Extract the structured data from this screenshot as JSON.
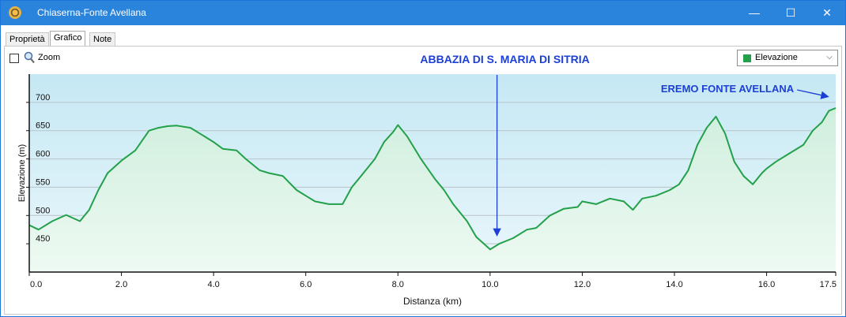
{
  "window": {
    "title": "Chiaserna-Fonte Avellana",
    "controls": {
      "minimize": "—",
      "maximize": "☐",
      "close": "✕"
    }
  },
  "tabs": [
    "Proprietà",
    "Grafico",
    "Note"
  ],
  "active_tab": "Grafico",
  "toolbar": {
    "zoom_label": "Zoom",
    "zoom_checked": false,
    "series_selected": "Elevazione"
  },
  "colors": {
    "titlebar": "#2b84dc",
    "series": "#23a04a",
    "annotation": "#1c3fd6"
  },
  "icons": [
    "app-icon",
    "magnifier-icon",
    "chevron-down-icon"
  ],
  "chart_data": {
    "type": "area",
    "xlabel": "Distanza  (km)",
    "ylabel": "Elevazione (m)",
    "xlim": [
      0,
      17.5
    ],
    "ylim": [
      400,
      750
    ],
    "xticks": [
      {
        "value": 0,
        "label": "0.0"
      },
      {
        "value": 2,
        "label": "2.0"
      },
      {
        "value": 4,
        "label": "4.0"
      },
      {
        "value": 6,
        "label": "6.0"
      },
      {
        "value": 8,
        "label": "8.0"
      },
      {
        "value": 10,
        "label": "10.0"
      },
      {
        "value": 12,
        "label": "12.0"
      },
      {
        "value": 14,
        "label": "14.0"
      },
      {
        "value": 16,
        "label": "16.0"
      },
      {
        "value": 17.5,
        "label": "17.5"
      }
    ],
    "yticks": [
      {
        "value": 450,
        "label": "450"
      },
      {
        "value": 500,
        "label": "500"
      },
      {
        "value": 550,
        "label": "550"
      },
      {
        "value": 600,
        "label": "600"
      },
      {
        "value": 650,
        "label": "650"
      },
      {
        "value": 700,
        "label": "700"
      }
    ],
    "grid": "horizontal",
    "series": [
      {
        "name": "Elevazione",
        "x": [
          0,
          0.2,
          0.5,
          0.8,
          1.1,
          1.3,
          1.5,
          1.7,
          2.0,
          2.3,
          2.6,
          2.8,
          3.0,
          3.2,
          3.5,
          3.8,
          4.0,
          4.2,
          4.5,
          4.7,
          5.0,
          5.2,
          5.5,
          5.8,
          6.0,
          6.2,
          6.5,
          6.8,
          7.0,
          7.2,
          7.5,
          7.7,
          7.9,
          8.0,
          8.2,
          8.5,
          8.8,
          9.0,
          9.2,
          9.5,
          9.7,
          10.0,
          10.2,
          10.5,
          10.8,
          11.0,
          11.3,
          11.6,
          11.9,
          12.0,
          12.3,
          12.6,
          12.9,
          13.1,
          13.3,
          13.6,
          13.9,
          14.1,
          14.3,
          14.5,
          14.7,
          14.9,
          15.1,
          15.3,
          15.5,
          15.7,
          15.9,
          16.0,
          16.2,
          16.5,
          16.8,
          17.0,
          17.2,
          17.35,
          17.5
        ],
        "y": [
          483,
          475,
          490,
          501,
          490,
          510,
          545,
          575,
          597,
          615,
          650,
          655,
          658,
          659,
          655,
          640,
          630,
          618,
          615,
          600,
          580,
          575,
          570,
          545,
          535,
          525,
          520,
          520,
          550,
          570,
          600,
          630,
          648,
          660,
          640,
          600,
          565,
          545,
          520,
          490,
          462,
          440,
          450,
          460,
          475,
          478,
          500,
          512,
          515,
          525,
          520,
          530,
          525,
          510,
          530,
          535,
          545,
          555,
          580,
          625,
          655,
          675,
          645,
          595,
          570,
          555,
          575,
          583,
          595,
          610,
          625,
          650,
          665,
          685,
          690
        ]
      }
    ],
    "annotations": [
      {
        "text": "ABBAZIA DI S. MARIA DI SITRIA",
        "x": 10.15,
        "y": 458
      },
      {
        "text": "EREMO FONTE AVELLANA",
        "x": 17.4,
        "y": 691
      }
    ]
  }
}
